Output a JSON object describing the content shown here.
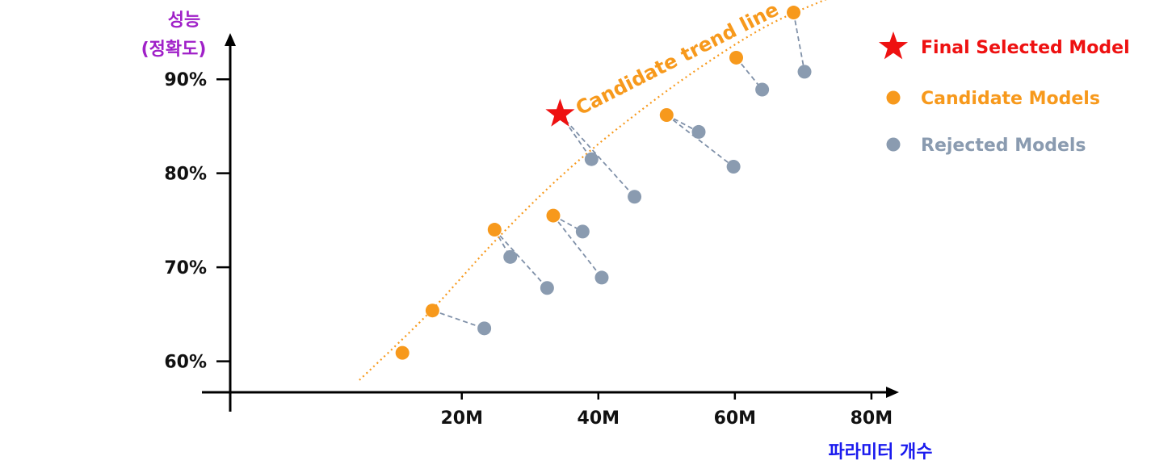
{
  "chart_data": {
    "type": "scatter",
    "ylabel_lines": [
      "성능",
      "(정확도)"
    ],
    "xlabel": "파라미터 개수",
    "x_ticks": [
      "20M",
      "40M",
      "60M",
      "80M"
    ],
    "x_tick_values": [
      20,
      40,
      60,
      80
    ],
    "y_ticks": [
      "60%",
      "70%",
      "80%",
      "90%"
    ],
    "y_tick_values": [
      60,
      70,
      80,
      90
    ],
    "xlim": [
      -18.3,
      82.5
    ],
    "ylim": [
      56.7,
      95
    ],
    "trend_label": "Candidate trend line",
    "series": [
      {
        "name": "Final Selected Model",
        "marker": "star",
        "color": "#ee1111",
        "points": [
          {
            "x": 34.4,
            "y": 86.3
          }
        ]
      },
      {
        "name": "Candidate Models",
        "marker": "circle",
        "color": "#f7991c",
        "points": [
          {
            "x": 11.3,
            "y": 60.9
          },
          {
            "x": 15.7,
            "y": 65.4
          },
          {
            "x": 24.8,
            "y": 74.0
          },
          {
            "x": 33.4,
            "y": 75.5
          },
          {
            "x": 50.0,
            "y": 86.2
          },
          {
            "x": 60.2,
            "y": 92.3
          },
          {
            "x": 68.6,
            "y": 97.1
          }
        ]
      },
      {
        "name": "Rejected Models",
        "marker": "circle",
        "color": "#8a9bb0",
        "points": [
          {
            "x": 23.3,
            "y": 63.5
          },
          {
            "x": 27.1,
            "y": 71.1
          },
          {
            "x": 32.5,
            "y": 67.8
          },
          {
            "x": 37.7,
            "y": 73.8
          },
          {
            "x": 40.5,
            "y": 68.9
          },
          {
            "x": 39.0,
            "y": 81.5
          },
          {
            "x": 45.3,
            "y": 77.5
          },
          {
            "x": 54.7,
            "y": 84.4
          },
          {
            "x": 59.8,
            "y": 80.7
          },
          {
            "x": 64.0,
            "y": 88.9
          },
          {
            "x": 70.2,
            "y": 90.8
          }
        ]
      }
    ],
    "connections": [
      {
        "from": {
          "x": 15.7,
          "y": 65.4
        },
        "to": {
          "x": 23.3,
          "y": 63.5
        }
      },
      {
        "from": {
          "x": 24.8,
          "y": 74.0
        },
        "to": {
          "x": 27.1,
          "y": 71.1
        }
      },
      {
        "from": {
          "x": 24.8,
          "y": 74.0
        },
        "to": {
          "x": 32.5,
          "y": 67.8
        }
      },
      {
        "from": {
          "x": 33.4,
          "y": 75.5
        },
        "to": {
          "x": 37.7,
          "y": 73.8
        }
      },
      {
        "from": {
          "x": 33.4,
          "y": 75.5
        },
        "to": {
          "x": 40.5,
          "y": 68.9
        }
      },
      {
        "from": {
          "x": 34.4,
          "y": 86.3
        },
        "to": {
          "x": 39.0,
          "y": 81.5
        }
      },
      {
        "from": {
          "x": 34.4,
          "y": 86.3
        },
        "to": {
          "x": 45.3,
          "y": 77.5
        }
      },
      {
        "from": {
          "x": 50.0,
          "y": 86.2
        },
        "to": {
          "x": 54.7,
          "y": 84.4
        }
      },
      {
        "from": {
          "x": 50.0,
          "y": 86.2
        },
        "to": {
          "x": 59.8,
          "y": 80.7
        }
      },
      {
        "from": {
          "x": 60.2,
          "y": 92.3
        },
        "to": {
          "x": 64.0,
          "y": 88.9
        }
      },
      {
        "from": {
          "x": 68.6,
          "y": 97.1
        },
        "to": {
          "x": 70.2,
          "y": 90.8
        }
      }
    ],
    "trend_line": [
      {
        "x": 5.0,
        "y": 58.0
      },
      {
        "x": 15.0,
        "y": 65.0
      },
      {
        "x": 25.0,
        "y": 72.9
      },
      {
        "x": 35.0,
        "y": 80.0
      },
      {
        "x": 45.0,
        "y": 86.0
      },
      {
        "x": 55.0,
        "y": 91.3
      },
      {
        "x": 65.0,
        "y": 95.8
      },
      {
        "x": 75.0,
        "y": 99.0
      }
    ],
    "colors": {
      "axis": "#000000",
      "ylabel": "#a020c8",
      "xlabel": "#1a1aee",
      "trend": "#f7991c",
      "connector": "#7f90a8"
    },
    "grid": false,
    "legend_position": "top-right"
  }
}
